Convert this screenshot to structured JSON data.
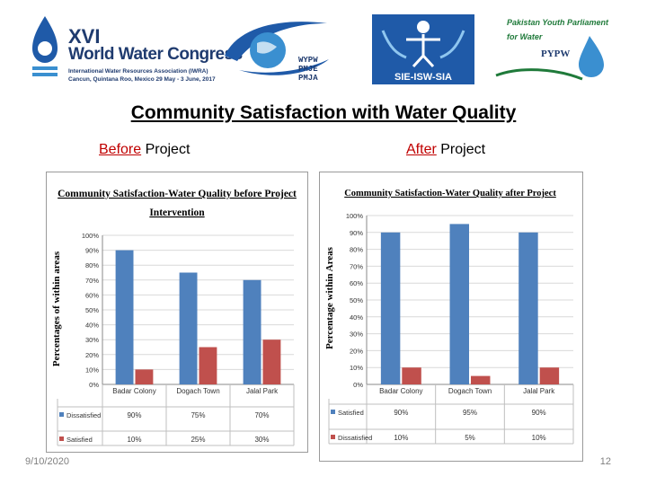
{
  "logos": {
    "wwc": {
      "roman": "XVI",
      "name": "World Water Congress",
      "line1": "International Water Resources Association (IWRA)",
      "line2": "Cancun, Quintana Roo, Mexico 29 May - 3 June, 2017"
    },
    "wypw": {
      "text": "WYPW\nPMJE\nPMJA"
    },
    "isw": {
      "text": "SIE-ISW-SIA"
    },
    "pypw": {
      "line1": "Pakistan Youth Parliament",
      "line2": "for Water",
      "badge": "PYPW"
    }
  },
  "slide": {
    "title": "Community Satisfaction with Water Quality",
    "before_u": "Before",
    "before_rest": " Project",
    "after_u": "After",
    "after_rest": " Project",
    "date": "9/10/2020",
    "page": "12"
  },
  "colors": {
    "blue": "#4f81bd",
    "red": "#c0504d"
  },
  "chart_data": [
    {
      "type": "bar",
      "title": "Community Satisfaction-Water Quality before Project Intervention",
      "ylabel": "Percentages of within areas",
      "categories": [
        "Badar Colony",
        "Dogach Town",
        "Jalal Park"
      ],
      "ylim": [
        0,
        100
      ],
      "yticks": [
        "0%",
        "10%",
        "20%",
        "30%",
        "40%",
        "50%",
        "60%",
        "70%",
        "80%",
        "90%",
        "100%"
      ],
      "series": [
        {
          "name": "Dissatisfied",
          "values": [
            90,
            75,
            70
          ],
          "labels": [
            "90%",
            "75%",
            "70%"
          ],
          "color": "#4f81bd"
        },
        {
          "name": "Satisfied",
          "values": [
            10,
            25,
            30
          ],
          "labels": [
            "10%",
            "25%",
            "30%"
          ],
          "color": "#c0504d"
        }
      ]
    },
    {
      "type": "bar",
      "title": "Community Satisfaction-Water Quality after Project",
      "ylabel": "Percentage within Areas",
      "categories": [
        "Badar Colony",
        "Dogach Town",
        "Jalal Park"
      ],
      "ylim": [
        0,
        100
      ],
      "yticks": [
        "0%",
        "10%",
        "20%",
        "30%",
        "40%",
        "50%",
        "60%",
        "70%",
        "80%",
        "90%",
        "100%"
      ],
      "series": [
        {
          "name": "Satisfied",
          "values": [
            90,
            95,
            90
          ],
          "labels": [
            "90%",
            "95%",
            "90%"
          ],
          "color": "#4f81bd"
        },
        {
          "name": "Dissatisfied",
          "values": [
            10,
            5,
            10
          ],
          "labels": [
            "10%",
            "5%",
            "10%"
          ],
          "color": "#c0504d"
        }
      ]
    }
  ]
}
